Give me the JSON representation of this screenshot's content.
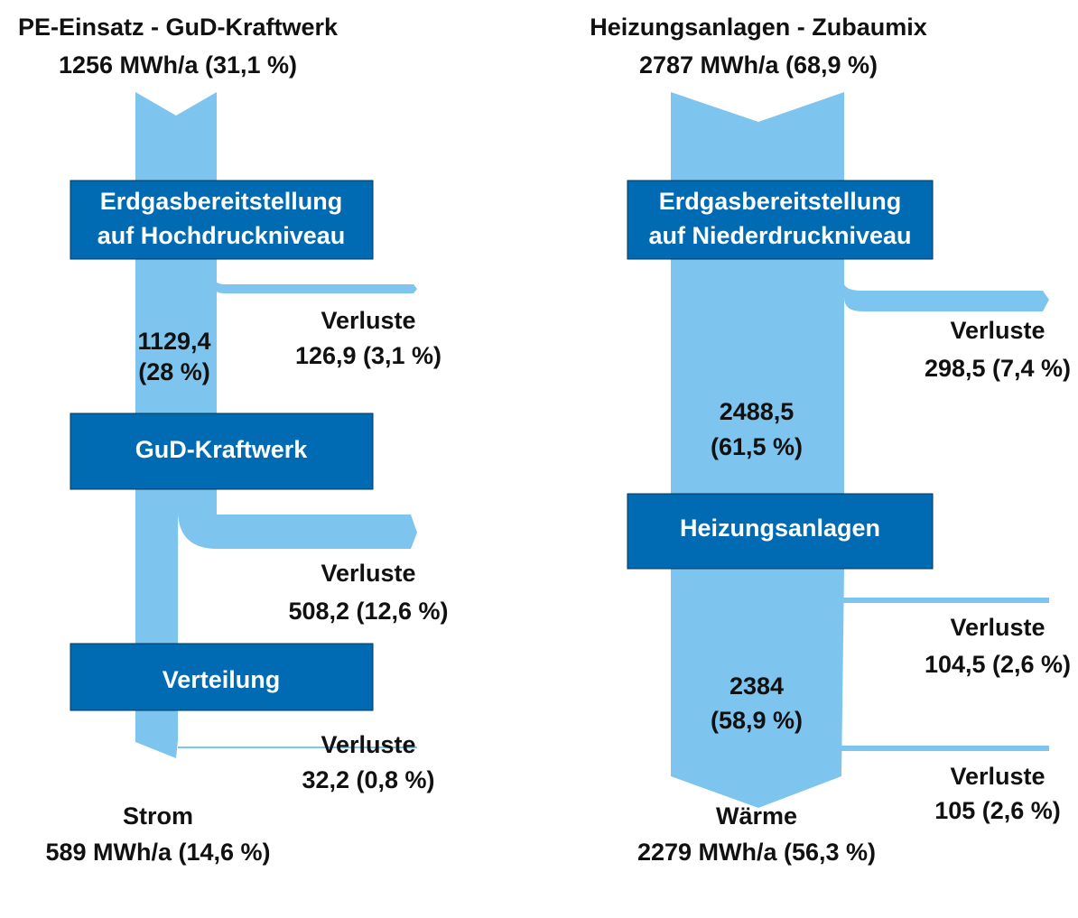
{
  "left": {
    "title": "PE-Einsatz - GuD-Kraftwerk",
    "input": "1256 MWh/a (31,1 %)",
    "boxes": [
      [
        "Erdgasbereitstellung",
        "auf Hochdruckniveau"
      ],
      [
        "GuD-Kraftwerk"
      ],
      [
        "Verteilung"
      ]
    ],
    "flows": [
      [
        "1129,4",
        "(28 %)"
      ]
    ],
    "losses": [
      [
        "Verluste",
        "126,9 (3,1 %)"
      ],
      [
        "Verluste",
        "508,2 (12,6 %)"
      ],
      [
        "Verluste",
        "32,2 (0,8 %)"
      ]
    ],
    "output": [
      "Strom",
      "589 MWh/a (14,6 %)"
    ]
  },
  "right": {
    "title": "Heizungsanlagen - Zubaumix",
    "input": "2787 MWh/a (68,9 %)",
    "boxes": [
      [
        "Erdgasbereitstellung",
        "auf Niederdruckniveau"
      ],
      [
        "Heizungsanlagen"
      ]
    ],
    "flows": [
      [
        "2488,5",
        "(61,5 %)"
      ],
      [
        "2384",
        "(58,9 %)"
      ]
    ],
    "losses": [
      [
        "Verluste",
        "298,5 (7,4 %)"
      ],
      [
        "Verluste",
        "104,5 (2,6 %)"
      ],
      [
        "Verluste",
        "105 (2,6 %)"
      ]
    ],
    "output": [
      "Wärme",
      "2279 MWh/a (56,3 %)"
    ]
  }
}
